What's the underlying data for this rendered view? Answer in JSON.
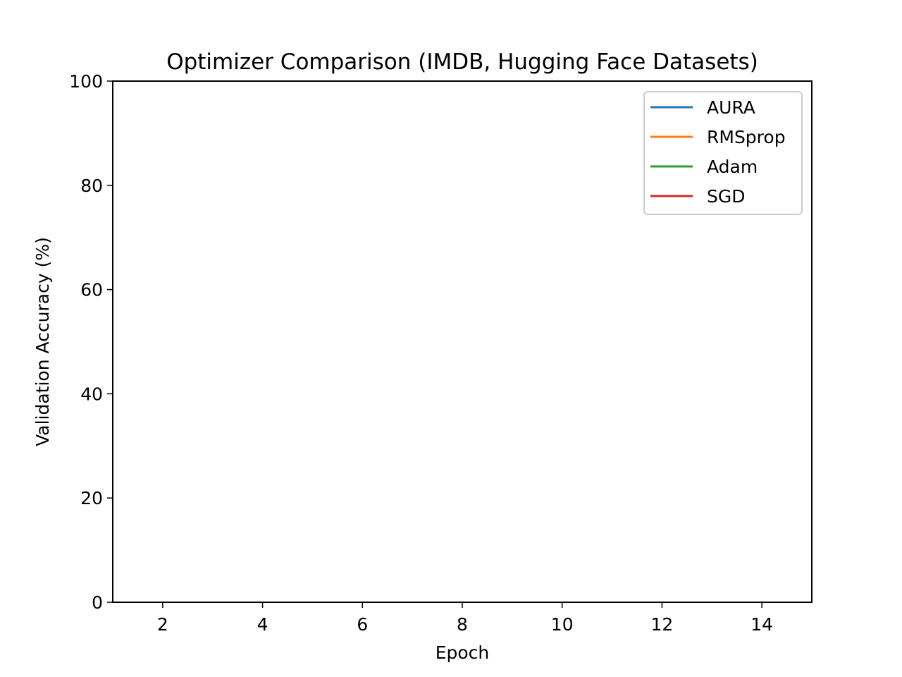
{
  "chart_data": {
    "type": "line",
    "title": "Optimizer Comparison (IMDB, Hugging Face Datasets)",
    "xlabel": "Epoch",
    "ylabel": "Validation Accuracy (%)",
    "xlim": [
      1,
      15
    ],
    "ylim": [
      0,
      100
    ],
    "xticks": [
      2,
      4,
      6,
      8,
      10,
      12,
      14
    ],
    "yticks": [
      0,
      20,
      40,
      60,
      80,
      100
    ],
    "grid": false,
    "legend_position": "top-right",
    "series": [
      {
        "name": "AURA",
        "color": "#1f77b4",
        "x": [],
        "y": []
      },
      {
        "name": "RMSprop",
        "color": "#ff7f0e",
        "x": [],
        "y": []
      },
      {
        "name": "Adam",
        "color": "#2ca02c",
        "x": [],
        "y": []
      },
      {
        "name": "SGD",
        "color": "#d62728",
        "x": [],
        "y": []
      }
    ]
  }
}
